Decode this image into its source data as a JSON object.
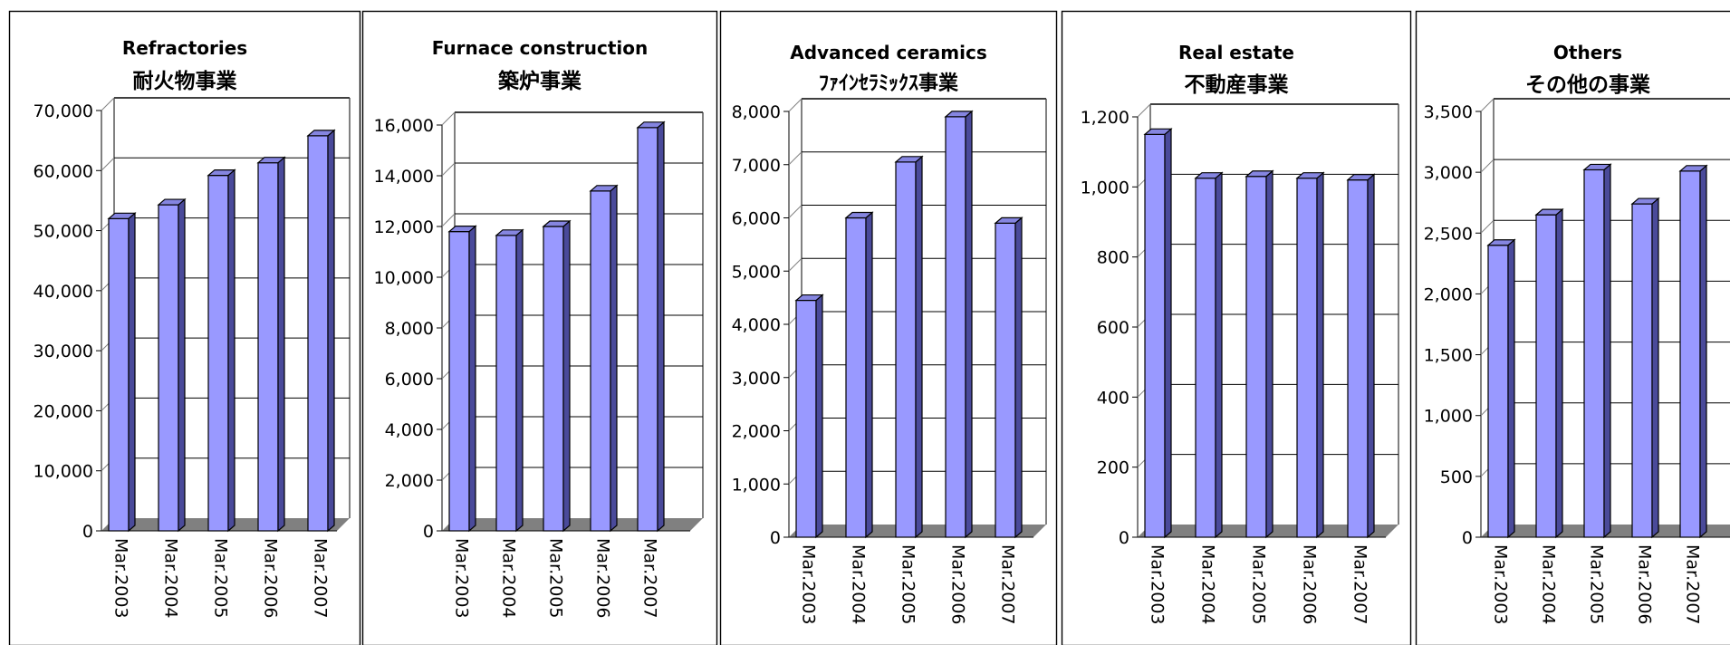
{
  "chart_data": [
    {
      "type": "bar",
      "title": "Refractories",
      "subtitle": "耐火物事業",
      "categories": [
        "Mar.2003",
        "Mar.2004",
        "Mar.2005",
        "Mar.2006",
        "Mar.2007"
      ],
      "values": [
        52000,
        54300,
        59200,
        61300,
        65800
      ],
      "ylim": [
        0,
        70000
      ],
      "yticks": [
        0,
        10000,
        20000,
        30000,
        40000,
        50000,
        60000,
        70000
      ],
      "ytick_labels": [
        "0",
        "10,000",
        "20,000",
        "30,000",
        "40,000",
        "50,000",
        "60,000",
        "70,000"
      ],
      "grid": true
    },
    {
      "type": "bar",
      "title": "Furnace construction",
      "subtitle": "築炉事業",
      "categories": [
        "Mar.2003",
        "Mar.2004",
        "Mar.2005",
        "Mar.2006",
        "Mar.2007"
      ],
      "values": [
        11800,
        11650,
        12000,
        13400,
        15900
      ],
      "ylim": [
        0,
        16000
      ],
      "yticks": [
        0,
        2000,
        4000,
        6000,
        8000,
        10000,
        12000,
        14000,
        16000
      ],
      "ytick_labels": [
        "0",
        "2,000",
        "4,000",
        "6,000",
        "8,000",
        "10,000",
        "12,000",
        "14,000",
        "16,000"
      ],
      "grid": true
    },
    {
      "type": "bar",
      "title": "Advanced ceramics",
      "subtitle": "ﾌｧｲﾝｾﾗﾐｯｸｽ事業",
      "categories": [
        "Mar.2003",
        "Mar.2004",
        "Mar.2005",
        "Mar.2006",
        "Mar.2007"
      ],
      "values": [
        4450,
        6000,
        7050,
        7900,
        5900
      ],
      "ylim": [
        0,
        8000
      ],
      "yticks": [
        0,
        1000,
        2000,
        3000,
        4000,
        5000,
        6000,
        7000,
        8000
      ],
      "ytick_labels": [
        "0",
        "1,000",
        "2,000",
        "3,000",
        "4,000",
        "5,000",
        "6,000",
        "7,000",
        "8,000"
      ],
      "grid": true
    },
    {
      "type": "bar",
      "title": "Real estate",
      "subtitle": "不動産事業",
      "categories": [
        "Mar.2003",
        "Mar.2004",
        "Mar.2005",
        "Mar.2006",
        "Mar.2007"
      ],
      "values": [
        1150,
        1025,
        1030,
        1025,
        1020
      ],
      "ylim": [
        0,
        1200
      ],
      "yticks": [
        0,
        200,
        400,
        600,
        800,
        1000,
        1200
      ],
      "ytick_labels": [
        "0",
        "200",
        "400",
        "600",
        "800",
        "1,000",
        "1,200"
      ],
      "grid": true
    },
    {
      "type": "bar",
      "title": "Others",
      "subtitle": "その他の事業",
      "categories": [
        "Mar.2003",
        "Mar.2004",
        "Mar.2005",
        "Mar.2006",
        "Mar.2007"
      ],
      "values": [
        2400,
        2650,
        3020,
        2740,
        3010
      ],
      "ylim": [
        0,
        3500
      ],
      "yticks": [
        0,
        500,
        1000,
        1500,
        2000,
        2500,
        3000,
        3500
      ],
      "ytick_labels": [
        "0",
        "500",
        "1,000",
        "1,500",
        "2,000",
        "2,500",
        "3,000",
        "3,500"
      ],
      "grid": true
    }
  ],
  "colors": {
    "bar_front": "#9999ff",
    "bar_side": "#4a4a9a",
    "bar_top": "#8585e0",
    "floor": "#808080",
    "grid": "#000000",
    "wall_edge": "#808080"
  }
}
